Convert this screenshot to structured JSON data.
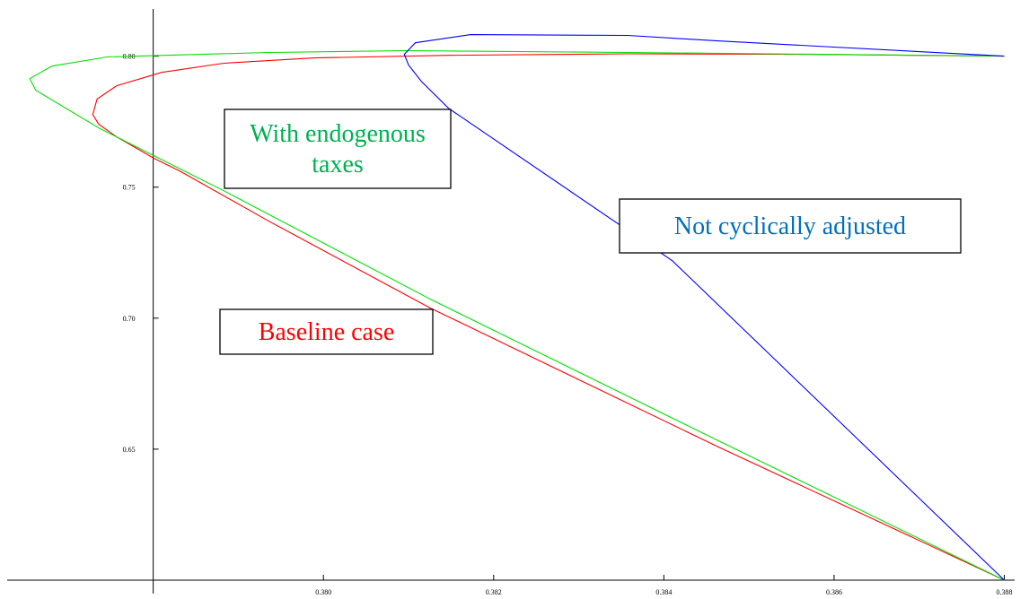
{
  "chart_data": {
    "type": "line",
    "xlim": [
      0.3762,
      0.3881
    ],
    "ylim": [
      0.6,
      0.818
    ],
    "axes_origin": [
      0.378,
      0.6
    ],
    "xticks": [
      {
        "value": 0.38,
        "label": "0.380"
      },
      0.382,
      0.384,
      0.386,
      0.388
    ],
    "yticks": [
      0.65,
      {
        "value": 0.7,
        "label": "0.70"
      },
      0.75,
      {
        "value": 0.8,
        "label": "0.80"
      }
    ],
    "series": [
      {
        "color": "#ff0000",
        "x": [
          0.388,
          0.38463,
          0.38126,
          0.37936,
          0.37831,
          0.37801,
          0.37757,
          0.37736,
          0.37729,
          0.37734,
          0.37757,
          0.3781,
          0.37883,
          0.37989,
          0.38147,
          0.38358,
          0.38568,
          0.388
        ],
        "values": [
          0.6,
          0.651,
          0.7038,
          0.737,
          0.7562,
          0.761,
          0.7692,
          0.774,
          0.7777,
          0.7836,
          0.7887,
          0.7938,
          0.7973,
          0.7993,
          0.8003,
          0.8009,
          0.8007,
          0.8
        ]
      },
      {
        "color": "#00e000",
        "x": [
          0.388,
          0.38463,
          0.38126,
          0.37883,
          0.37736,
          0.37662,
          0.37655,
          0.37681,
          0.37746,
          0.37936,
          0.38094,
          0.38358,
          0.388
        ],
        "values": [
          0.6,
          0.6534,
          0.7072,
          0.7486,
          0.7726,
          0.787,
          0.7914,
          0.7962,
          0.7997,
          0.8014,
          0.8021,
          0.8014,
          0.8
        ]
      },
      {
        "color": "#0000ff",
        "x": [
          0.388,
          0.3841,
          0.38147,
          0.38115,
          0.381,
          0.38095,
          0.38108,
          0.38173,
          0.38358,
          0.38463,
          0.388
        ],
        "values": [
          0.6,
          0.7219,
          0.7801,
          0.7904,
          0.7966,
          0.8007,
          0.8051,
          0.8082,
          0.8079,
          0.8058,
          0.8
        ]
      }
    ],
    "annotations": [
      {
        "lines": [
          "With endogenous",
          "taxes"
        ],
        "color": "#00b050"
      },
      {
        "lines": [
          "Baseline case"
        ],
        "color": "#ff0000"
      },
      {
        "lines": [
          "Not cyclically adjusted"
        ],
        "color": "#0070c0"
      }
    ]
  }
}
